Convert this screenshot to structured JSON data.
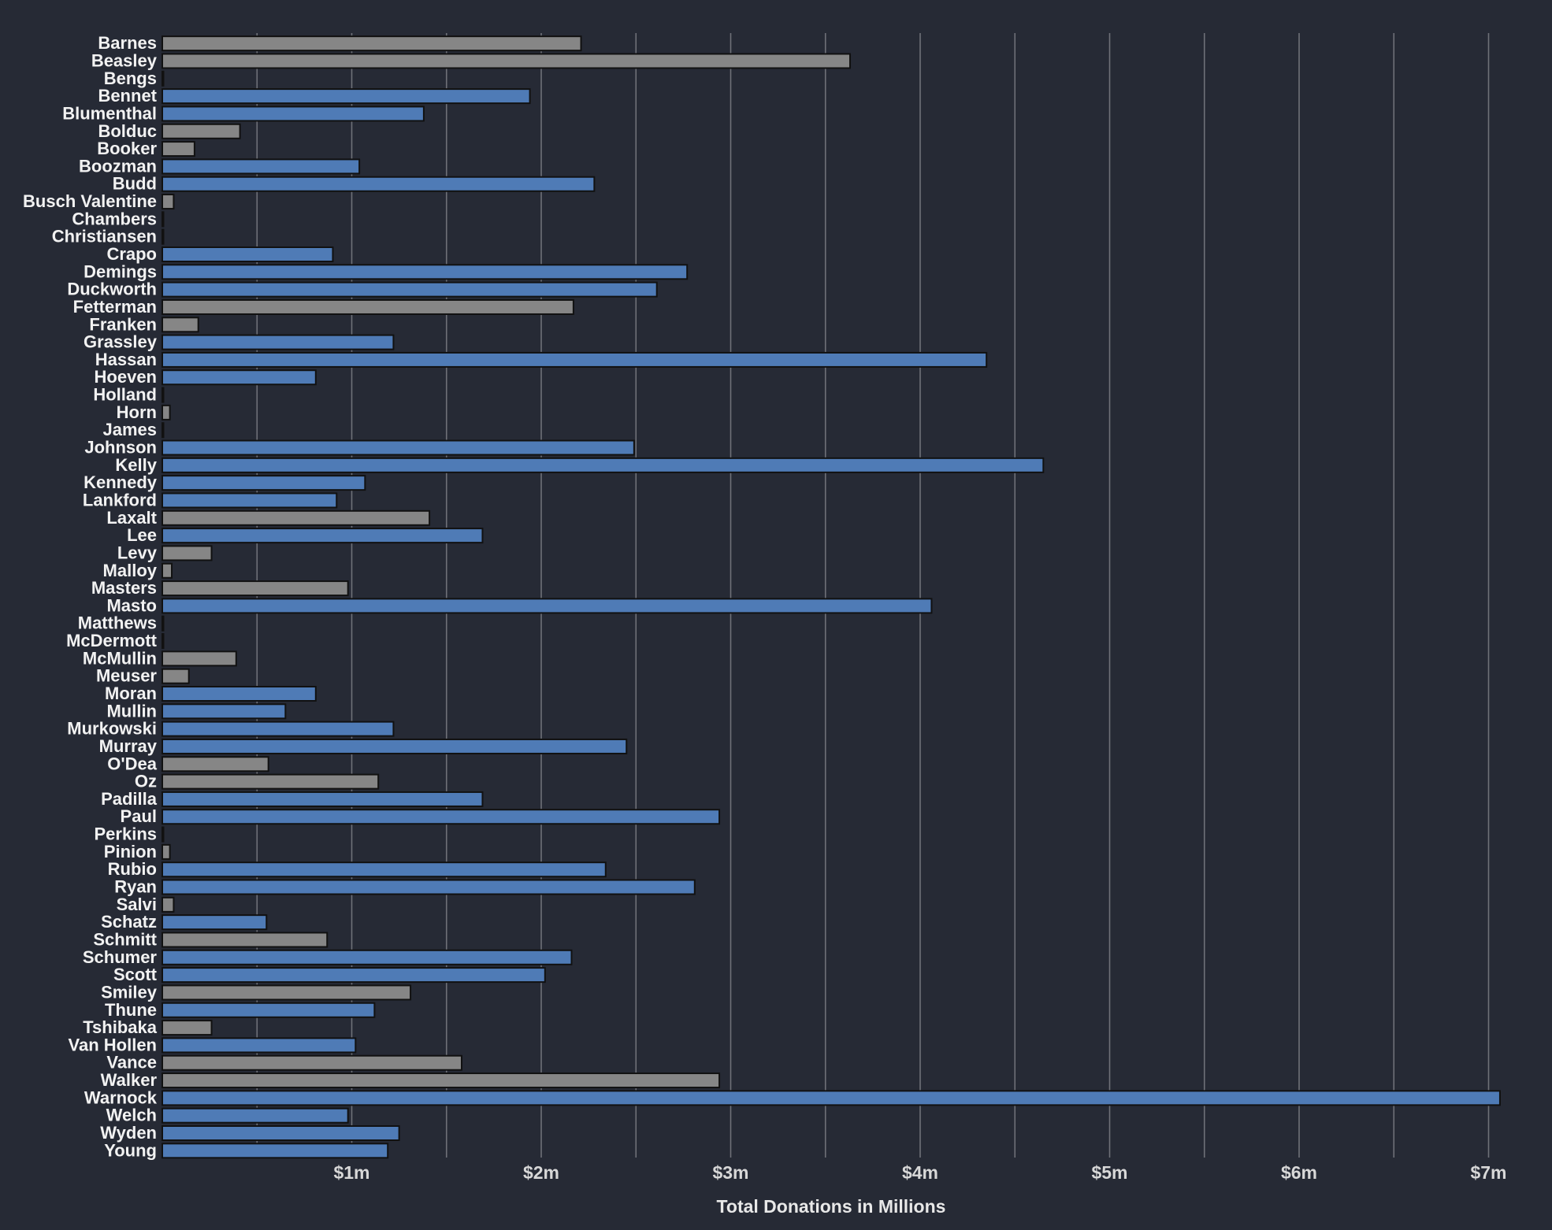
{
  "colors": {
    "background": "#262a35",
    "incumbent": "#4f7bb6",
    "challenger": "#868686",
    "gridline": "#6e7178"
  },
  "chart_data": {
    "type": "bar",
    "orientation": "horizontal",
    "xlabel": "Total Donations in Millions",
    "ylabel": "",
    "xlim": [
      0,
      7.1
    ],
    "xticks": [
      1,
      2,
      3,
      4,
      5,
      6,
      7
    ],
    "xtick_labels": [
      "$1m",
      "$2m",
      "$3m",
      "$4m",
      "$5m",
      "$6m",
      "$7m"
    ],
    "minor_gridlines": [
      0.5,
      1.5,
      2.5,
      3.5,
      4.5,
      5.5,
      6.5
    ],
    "grid": true,
    "categories": [
      "Barnes",
      "Beasley",
      "Bengs",
      "Bennet",
      "Blumenthal",
      "Bolduc",
      "Booker",
      "Boozman",
      "Budd",
      "Busch Valentine",
      "Chambers",
      "Christiansen",
      "Crapo",
      "Demings",
      "Duckworth",
      "Fetterman",
      "Franken",
      "Grassley",
      "Hassan",
      "Hoeven",
      "Holland",
      "Horn",
      "James",
      "Johnson",
      "Kelly",
      "Kennedy",
      "Lankford",
      "Laxalt",
      "Lee",
      "Levy",
      "Malloy",
      "Masters",
      "Masto",
      "Matthews",
      "McDermott",
      "McMullin",
      "Meuser",
      "Moran",
      "Mullin",
      "Murkowski",
      "Murray",
      "O'Dea",
      "Oz",
      "Padilla",
      "Paul",
      "Perkins",
      "Pinion",
      "Rubio",
      "Ryan",
      "Salvi",
      "Schatz",
      "Schmitt",
      "Schumer",
      "Scott",
      "Smiley",
      "Thune",
      "Tshibaka",
      "Van Hollen",
      "Vance",
      "Walker",
      "Warnock",
      "Welch",
      "Wyden",
      "Young"
    ],
    "values": [
      2.21,
      3.63,
      0,
      1.94,
      1.38,
      0.41,
      0.17,
      1.04,
      2.28,
      0.06,
      0,
      0,
      0.9,
      2.77,
      2.61,
      2.17,
      0.19,
      1.22,
      4.35,
      0.81,
      0,
      0.04,
      0,
      2.49,
      4.65,
      1.07,
      0.92,
      1.41,
      1.69,
      0.26,
      0.05,
      0.98,
      4.06,
      0,
      0,
      0.39,
      0.14,
      0.81,
      0.65,
      1.22,
      2.45,
      0.56,
      1.14,
      1.69,
      2.94,
      0,
      0.04,
      2.34,
      2.81,
      0.06,
      0.55,
      0.87,
      2.16,
      2.02,
      1.31,
      1.12,
      0.26,
      1.02,
      1.58,
      2.94,
      7.06,
      0.98,
      1.25,
      1.19
    ],
    "groups": [
      "challenger",
      "challenger",
      "challenger",
      "incumbent",
      "incumbent",
      "challenger",
      "challenger",
      "incumbent",
      "incumbent",
      "challenger",
      "challenger",
      "challenger",
      "incumbent",
      "incumbent",
      "incumbent",
      "challenger",
      "challenger",
      "incumbent",
      "incumbent",
      "incumbent",
      "challenger",
      "challenger",
      "challenger",
      "incumbent",
      "incumbent",
      "incumbent",
      "incumbent",
      "challenger",
      "incumbent",
      "challenger",
      "challenger",
      "challenger",
      "incumbent",
      "challenger",
      "challenger",
      "challenger",
      "challenger",
      "incumbent",
      "incumbent",
      "incumbent",
      "incumbent",
      "challenger",
      "challenger",
      "incumbent",
      "incumbent",
      "challenger",
      "challenger",
      "incumbent",
      "incumbent",
      "challenger",
      "incumbent",
      "challenger",
      "incumbent",
      "incumbent",
      "challenger",
      "incumbent",
      "challenger",
      "incumbent",
      "challenger",
      "challenger",
      "incumbent",
      "incumbent",
      "incumbent",
      "incumbent"
    ]
  }
}
